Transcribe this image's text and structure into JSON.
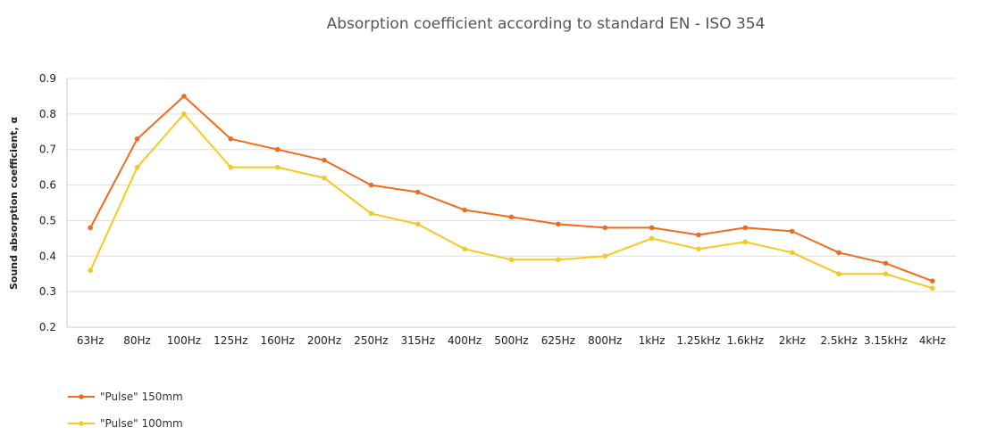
{
  "chart_data": {
    "type": "line",
    "title": "Absorption coefficient according to standard EN - ISO 354",
    "xlabel": "",
    "ylabel": "Sound absorption coefficient, α",
    "ylim": [
      0.2,
      0.9
    ],
    "yticks": [
      "0.9",
      "0.8",
      "0.7",
      "0.6",
      "0.5",
      "0.4",
      "0.3",
      "0.2"
    ],
    "grid": true,
    "legend_position": "bottom-left",
    "categories": [
      "63Hz",
      "80Hz",
      "100Hz",
      "125Hz",
      "160Hz",
      "200Hz",
      "250Hz",
      "315Hz",
      "400Hz",
      "500Hz",
      "625Hz",
      "800Hz",
      "1kHz",
      "1.25kHz",
      "1.6kHz",
      "2kHz",
      "2.5kHz",
      "3.15kHz",
      "4kHz"
    ],
    "series": [
      {
        "name": "\"Pulse\" 150mm",
        "color": "#f26b1d",
        "values": [
          0.48,
          0.73,
          0.85,
          0.73,
          0.7,
          0.67,
          0.6,
          0.58,
          0.53,
          0.51,
          0.49,
          0.48,
          0.48,
          0.46,
          0.48,
          0.47,
          0.41,
          0.38,
          0.33
        ]
      },
      {
        "name": "\"Pulse\" 100mm",
        "color": "#f7c81e",
        "values": [
          0.36,
          0.65,
          0.8,
          0.65,
          0.65,
          0.62,
          0.52,
          0.49,
          0.42,
          0.39,
          0.39,
          0.4,
          0.45,
          0.42,
          0.44,
          0.41,
          0.35,
          0.35,
          0.31
        ]
      }
    ]
  }
}
